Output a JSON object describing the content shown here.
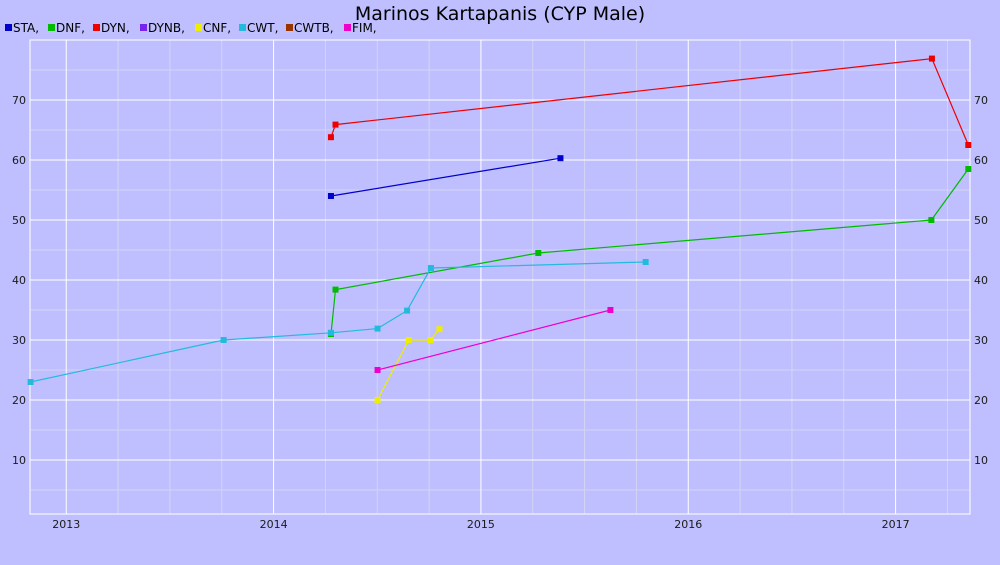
{
  "chart_data": {
    "type": "line",
    "title": "Marinos Kartapanis (CYP Male)",
    "xlabel": "",
    "ylabel": "",
    "grid": true,
    "legend_position": "top-left",
    "x_ticks": [
      "2013",
      "2014",
      "2015",
      "2016",
      "2017"
    ],
    "y_ticks": [
      10,
      20,
      30,
      40,
      50,
      60,
      70
    ],
    "xlim": [
      "2012-10-29",
      "2017-05-12"
    ],
    "ylim": [
      1,
      80
    ],
    "series": [
      {
        "name": "STA",
        "color": "#0000cc",
        "points": [
          {
            "x": "2014-04-12",
            "y": 54
          },
          {
            "x": "2015-05-21",
            "y": 60.3
          }
        ]
      },
      {
        "name": "DNF",
        "color": "#00bb00",
        "points": [
          {
            "x": "2014-04-12",
            "y": 31
          },
          {
            "x": "2014-04-20",
            "y": 38.4
          },
          {
            "x": "2015-04-12",
            "y": 44.5
          },
          {
            "x": "2017-03-05",
            "y": 50
          },
          {
            "x": "2017-05-09",
            "y": 58.5
          }
        ]
      },
      {
        "name": "DYN",
        "color": "#ee0000",
        "points": [
          {
            "x": "2014-04-12",
            "y": 63.8
          },
          {
            "x": "2014-04-20",
            "y": 65.9
          },
          {
            "x": "2017-03-06",
            "y": 76.9
          },
          {
            "x": "2017-05-09",
            "y": 62.5
          }
        ]
      },
      {
        "name": "DYNB",
        "color": "#7722ee",
        "points": []
      },
      {
        "name": "CNF",
        "color": "#eeee00",
        "points": [
          {
            "x": "2014-07-03",
            "y": 20
          },
          {
            "x": "2014-08-27",
            "y": 30
          },
          {
            "x": "2014-10-04",
            "y": 30
          },
          {
            "x": "2014-10-20",
            "y": 31.8
          }
        ]
      },
      {
        "name": "CWT",
        "color": "#22bbdd",
        "points": [
          {
            "x": "2012-10-30",
            "y": 23
          },
          {
            "x": "2013-10-05",
            "y": 30
          },
          {
            "x": "2014-04-12",
            "y": 31.2
          },
          {
            "x": "2014-07-03",
            "y": 31.9
          },
          {
            "x": "2014-08-24",
            "y": 34.9
          },
          {
            "x": "2014-10-05",
            "y": 42
          },
          {
            "x": "2015-10-18",
            "y": 43
          }
        ]
      },
      {
        "name": "CWTB",
        "color": "#993300",
        "points": []
      },
      {
        "name": "FIM",
        "color": "#ee00cc",
        "points": [
          {
            "x": "2014-07-03",
            "y": 25
          },
          {
            "x": "2015-08-17",
            "y": 35
          }
        ]
      }
    ]
  }
}
